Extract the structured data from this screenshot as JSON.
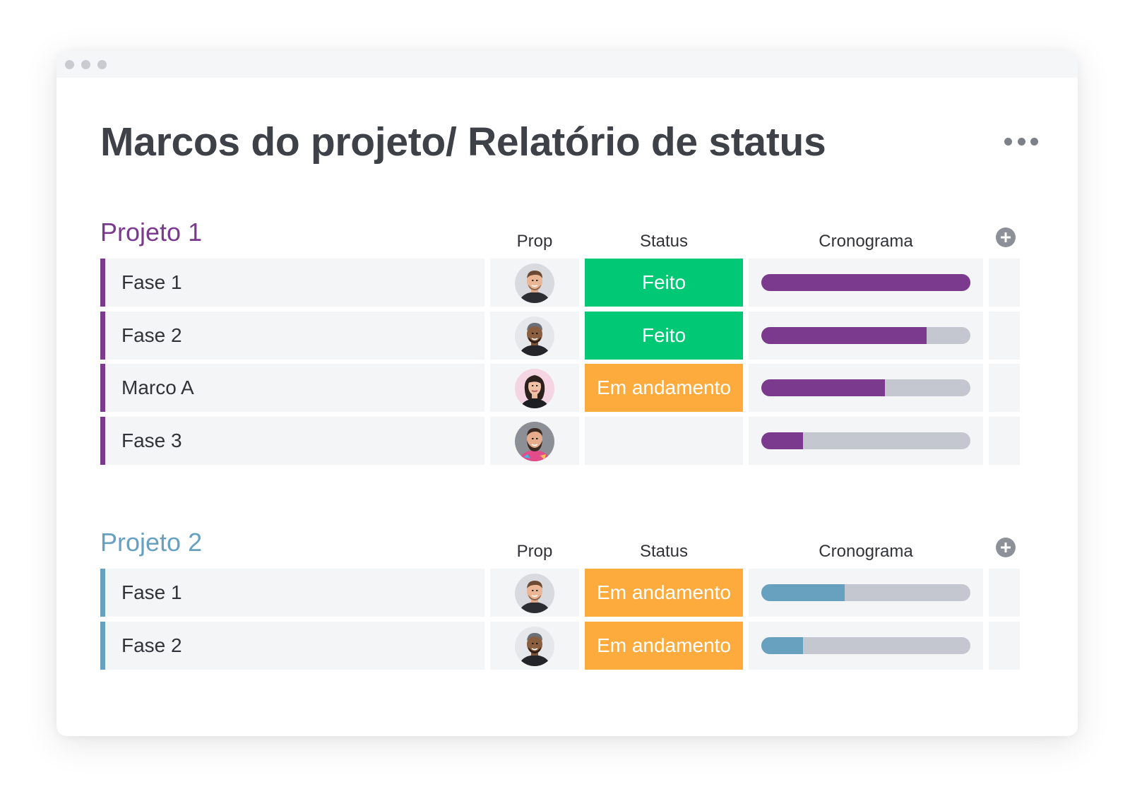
{
  "window": {
    "title": "Marcos do projeto/ Relatório de status"
  },
  "colors": {
    "done": "#00c875",
    "in_progress": "#fdab3d",
    "project1": "#7b3a8d",
    "project2": "#68a0c0"
  },
  "columns": {
    "prop": "Prop",
    "status": "Status",
    "timeline": "Cronograma"
  },
  "groups": [
    {
      "title": "Projeto 1",
      "color": "#7b3a8d",
      "rows": [
        {
          "name": "Fase 1",
          "avatar": "person-1",
          "status": "Feito",
          "status_color": "#00c875",
          "progress": 1.0
        },
        {
          "name": "Fase 2",
          "avatar": "person-2",
          "status": "Feito",
          "status_color": "#00c875",
          "progress": 0.79
        },
        {
          "name": "Marco A",
          "avatar": "person-3",
          "status": "Em andamento",
          "status_color": "#fdab3d",
          "progress": 0.59
        },
        {
          "name": "Fase 3",
          "avatar": "person-4",
          "status": "",
          "status_color": "#f4f5f7",
          "progress": 0.2
        }
      ]
    },
    {
      "title": "Projeto 2",
      "color": "#68a0c0",
      "rows": [
        {
          "name": "Fase 1",
          "avatar": "person-1",
          "status": "Em andamento",
          "status_color": "#fdab3d",
          "progress": 0.4
        },
        {
          "name": "Fase 2",
          "avatar": "person-2",
          "status": "Em andamento",
          "status_color": "#fdab3d",
          "progress": 0.2
        }
      ]
    }
  ]
}
